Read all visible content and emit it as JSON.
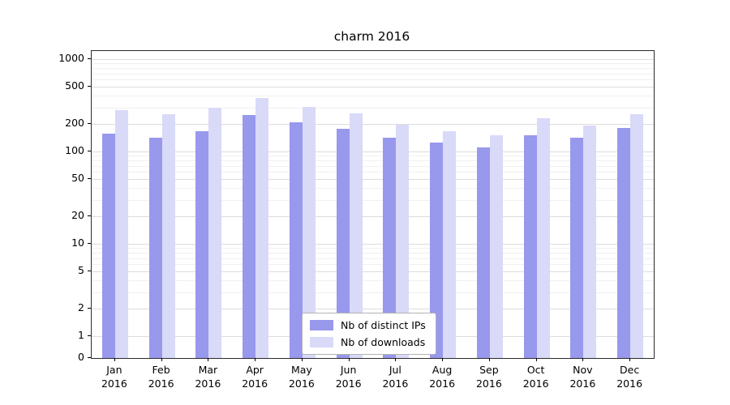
{
  "chart_data": {
    "type": "bar",
    "title": "charm 2016",
    "xlabel": "",
    "ylabel": "",
    "yscale": "symlog",
    "ylim": [
      0,
      1000
    ],
    "grid": true,
    "legend_position": "lower center",
    "yticks": [
      0,
      1,
      2,
      5,
      10,
      20,
      50,
      100,
      200,
      500,
      1000
    ],
    "categories": [
      {
        "month": "Jan",
        "year": "2016"
      },
      {
        "month": "Feb",
        "year": "2016"
      },
      {
        "month": "Mar",
        "year": "2016"
      },
      {
        "month": "Apr",
        "year": "2016"
      },
      {
        "month": "May",
        "year": "2016"
      },
      {
        "month": "Jun",
        "year": "2016"
      },
      {
        "month": "Jul",
        "year": "2016"
      },
      {
        "month": "Aug",
        "year": "2016"
      },
      {
        "month": "Sep",
        "year": "2016"
      },
      {
        "month": "Oct",
        "year": "2016"
      },
      {
        "month": "Nov",
        "year": "2016"
      },
      {
        "month": "Dec",
        "year": "2016"
      }
    ],
    "series": [
      {
        "name": "Nb of distinct IPs",
        "color": "#9898ed",
        "values": [
          155,
          140,
          165,
          250,
          205,
          175,
          140,
          125,
          110,
          150,
          140,
          180
        ]
      },
      {
        "name": "Nb of downloads",
        "color": "#d9d9f8",
        "values": [
          280,
          255,
          300,
          380,
          305,
          260,
          195,
          165,
          150,
          230,
          190,
          255
        ]
      }
    ]
  }
}
